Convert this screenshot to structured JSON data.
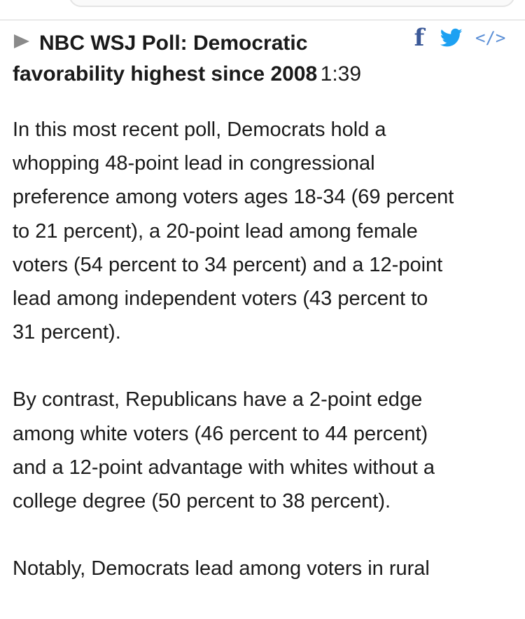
{
  "video": {
    "title_line1": "NBC WSJ Poll: Democratic",
    "title_line2": "favorability highest since 2008",
    "duration": "1:39"
  },
  "share": {
    "facebook_glyph": "f",
    "embed_glyph": "</>",
    "icons": [
      "facebook-icon",
      "twitter-icon",
      "embed-code-icon"
    ],
    "colors": {
      "facebook": "#3b5998",
      "twitter": "#1da1f2",
      "embed": "#5b8fd6"
    }
  },
  "article": {
    "paragraphs": [
      {
        "lines": [
          "In this most recent poll, Democrats hold a",
          "whopping 48-point lead in congressional",
          "preference among voters ages 18-34 (69 percent",
          "to 21 percent), a 20-point lead among female",
          "voters (54 percent to 34 percent) and a 12-point",
          "lead among independent voters (43 percent to",
          "31 percent)."
        ]
      },
      {
        "lines": [
          "By contrast, Republicans have a 2-point edge",
          "among white voters (46 percent to 44 percent)",
          "and a 12-point advantage with whites without a",
          "college degree (50 percent to 38 percent)."
        ]
      },
      {
        "lines": [
          "Notably, Democrats lead among voters in rural"
        ]
      }
    ]
  }
}
